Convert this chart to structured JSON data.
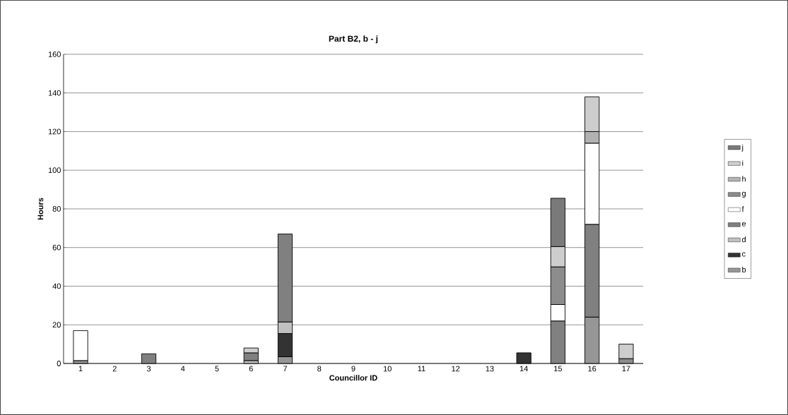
{
  "chart_data": {
    "type": "bar",
    "stacked": true,
    "title": "Part B2, b - j",
    "xlabel": "Councillor ID",
    "ylabel": "Hours",
    "categories": [
      "1",
      "2",
      "3",
      "4",
      "5",
      "6",
      "7",
      "8",
      "9",
      "10",
      "11",
      "12",
      "13",
      "14",
      "15",
      "16",
      "17"
    ],
    "series": [
      {
        "name": "b",
        "color": "#969696",
        "values": [
          1.5,
          null,
          null,
          null,
          null,
          null,
          3.5,
          null,
          null,
          null,
          null,
          null,
          null,
          null,
          null,
          24,
          null
        ]
      },
      {
        "name": "c",
        "color": "#333333",
        "values": [
          null,
          null,
          null,
          null,
          null,
          null,
          12,
          null,
          null,
          null,
          null,
          null,
          null,
          5.5,
          null,
          null,
          null
        ]
      },
      {
        "name": "d",
        "color": "#c0c0c0",
        "values": [
          null,
          null,
          null,
          null,
          null,
          1.5,
          6,
          null,
          null,
          null,
          null,
          null,
          null,
          null,
          null,
          null,
          null
        ]
      },
      {
        "name": "e",
        "color": "#808080",
        "values": [
          null,
          null,
          5,
          null,
          null,
          4,
          45.5,
          null,
          null,
          null,
          null,
          null,
          null,
          null,
          22,
          48,
          null
        ]
      },
      {
        "name": "f",
        "color": "#ffffff",
        "values": [
          15.5,
          null,
          null,
          null,
          null,
          null,
          null,
          null,
          null,
          null,
          null,
          null,
          null,
          null,
          8.5,
          42,
          null
        ]
      },
      {
        "name": "g",
        "color": "#8c8c8c",
        "values": [
          null,
          null,
          null,
          null,
          null,
          null,
          null,
          null,
          null,
          null,
          null,
          null,
          null,
          null,
          19.5,
          null,
          2.5
        ]
      },
      {
        "name": "h",
        "color": "#b2b2b2",
        "values": [
          null,
          null,
          null,
          null,
          null,
          null,
          null,
          null,
          null,
          null,
          null,
          null,
          null,
          null,
          null,
          6,
          null
        ]
      },
      {
        "name": "i",
        "color": "#cdcdcd",
        "values": [
          null,
          null,
          null,
          null,
          null,
          2.5,
          null,
          null,
          null,
          null,
          null,
          null,
          null,
          null,
          10.5,
          18,
          7.5
        ]
      },
      {
        "name": "j",
        "color": "#7a7a7a",
        "values": [
          null,
          null,
          null,
          null,
          null,
          null,
          null,
          null,
          null,
          null,
          null,
          null,
          null,
          null,
          25,
          null,
          null
        ]
      }
    ],
    "ylim": [
      0,
      160
    ],
    "yticks": [
      0,
      20,
      40,
      60,
      80,
      100,
      120,
      140,
      160
    ],
    "grid": "y",
    "legend": "right"
  }
}
